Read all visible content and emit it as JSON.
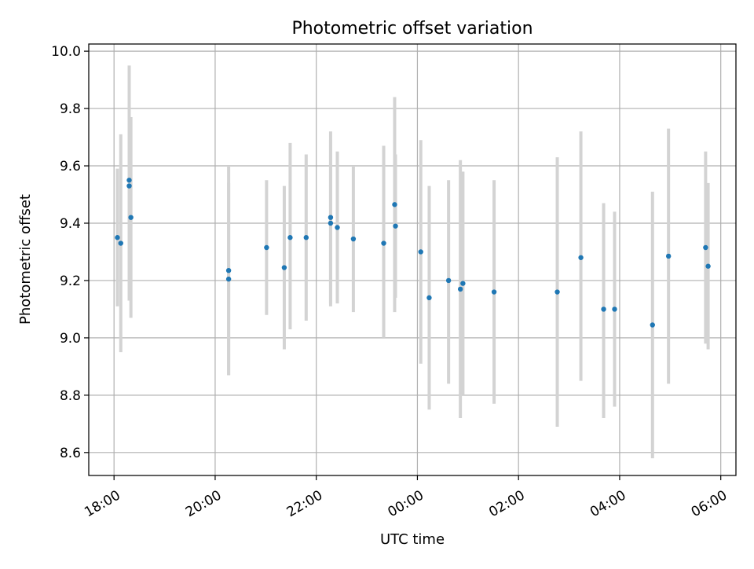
{
  "chart_data": {
    "type": "scatter",
    "title": "Photometric offset variation",
    "xlabel": "UTC time",
    "ylabel": "Photometric offset",
    "xlim": [
      17.5,
      30.3
    ],
    "ylim": [
      8.52,
      10.025
    ],
    "grid": true,
    "x_ticks": [
      {
        "value": 18,
        "label": "18:00"
      },
      {
        "value": 20,
        "label": "20:00"
      },
      {
        "value": 22,
        "label": "22:00"
      },
      {
        "value": 24,
        "label": "00:00"
      },
      {
        "value": 26,
        "label": "02:00"
      },
      {
        "value": 28,
        "label": "04:00"
      },
      {
        "value": 30,
        "label": "06:00"
      }
    ],
    "y_ticks": [
      {
        "value": 8.6,
        "label": "8.6"
      },
      {
        "value": 8.8,
        "label": "8.8"
      },
      {
        "value": 9.0,
        "label": "9.0"
      },
      {
        "value": 9.2,
        "label": "9.2"
      },
      {
        "value": 9.4,
        "label": "9.4"
      },
      {
        "value": 9.6,
        "label": "9.6"
      },
      {
        "value": 9.8,
        "label": "9.8"
      },
      {
        "value": 10.0,
        "label": "10.0"
      }
    ],
    "colors": {
      "point": "#1f77b4",
      "errorbar": "#d3d3d3",
      "grid": "#b0b0b0"
    },
    "points": [
      {
        "time": "18:04",
        "value": 9.35,
        "lower": 9.11,
        "upper": 9.59
      },
      {
        "time": "18:08",
        "value": 9.33,
        "lower": 8.95,
        "upper": 9.71
      },
      {
        "time": "18:18",
        "value": 9.55,
        "lower": 9.15,
        "upper": 9.95
      },
      {
        "time": "18:18",
        "value": 9.53,
        "lower": 9.13,
        "upper": 9.93
      },
      {
        "time": "18:20",
        "value": 9.42,
        "lower": 9.07,
        "upper": 9.77
      },
      {
        "time": "20:16",
        "value": 9.235,
        "lower": 8.87,
        "upper": 9.6
      },
      {
        "time": "20:16",
        "value": 9.205,
        "lower": 8.87,
        "upper": 9.54
      },
      {
        "time": "21:01",
        "value": 9.315,
        "lower": 9.08,
        "upper": 9.55
      },
      {
        "time": "21:22",
        "value": 9.245,
        "lower": 8.96,
        "upper": 9.53
      },
      {
        "time": "21:29",
        "value": 9.35,
        "lower": 9.03,
        "upper": 9.68
      },
      {
        "time": "21:48",
        "value": 9.35,
        "lower": 9.06,
        "upper": 9.64
      },
      {
        "time": "22:17",
        "value": 9.42,
        "lower": 9.12,
        "upper": 9.72
      },
      {
        "time": "22:17",
        "value": 9.4,
        "lower": 9.11,
        "upper": 9.69
      },
      {
        "time": "22:25",
        "value": 9.385,
        "lower": 9.12,
        "upper": 9.65
      },
      {
        "time": "22:44",
        "value": 9.345,
        "lower": 9.09,
        "upper": 9.6
      },
      {
        "time": "23:20",
        "value": 9.33,
        "lower": 9.0,
        "upper": 9.67
      },
      {
        "time": "23:33",
        "value": 9.465,
        "lower": 9.09,
        "upper": 9.84
      },
      {
        "time": "23:34",
        "value": 9.39,
        "lower": 9.14,
        "upper": 9.64
      },
      {
        "time": "00:04",
        "value": 9.3,
        "lower": 8.91,
        "upper": 9.69
      },
      {
        "time": "00:14",
        "value": 9.14,
        "lower": 8.75,
        "upper": 9.53
      },
      {
        "time": "00:37",
        "value": 9.2,
        "lower": 8.84,
        "upper": 9.55
      },
      {
        "time": "00:51",
        "value": 9.17,
        "lower": 8.72,
        "upper": 9.62
      },
      {
        "time": "00:54",
        "value": 9.19,
        "lower": 8.8,
        "upper": 9.58
      },
      {
        "time": "01:31",
        "value": 9.16,
        "lower": 8.77,
        "upper": 9.55
      },
      {
        "time": "02:46",
        "value": 9.16,
        "lower": 8.69,
        "upper": 9.63
      },
      {
        "time": "03:14",
        "value": 9.28,
        "lower": 8.85,
        "upper": 9.72
      },
      {
        "time": "03:41",
        "value": 9.1,
        "lower": 8.72,
        "upper": 9.47
      },
      {
        "time": "03:54",
        "value": 9.1,
        "lower": 8.76,
        "upper": 9.44
      },
      {
        "time": "04:39",
        "value": 9.045,
        "lower": 8.58,
        "upper": 9.51
      },
      {
        "time": "04:58",
        "value": 9.285,
        "lower": 8.84,
        "upper": 9.73
      },
      {
        "time": "05:42",
        "value": 9.315,
        "lower": 8.98,
        "upper": 9.65
      },
      {
        "time": "05:45",
        "value": 9.25,
        "lower": 8.96,
        "upper": 9.54
      }
    ]
  }
}
